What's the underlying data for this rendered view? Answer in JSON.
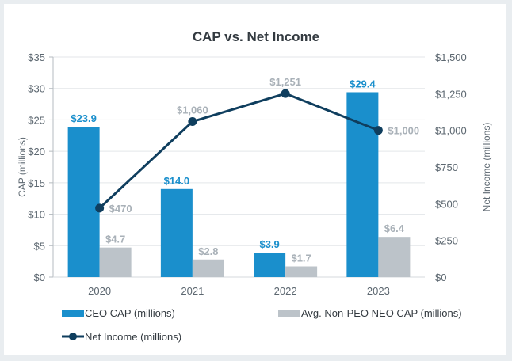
{
  "chart_data": {
    "type": "bar",
    "title": "CAP vs. Net Income",
    "categories": [
      "2020",
      "2021",
      "2022",
      "2023"
    ],
    "ylabel": "CAP (millions)",
    "y2label": "Net Income (millions)",
    "ylim": [
      0,
      35
    ],
    "y2lim": [
      0,
      1500
    ],
    "yticks": [
      "$0",
      "$5",
      "$10",
      "$15",
      "$20",
      "$25",
      "$30",
      "$35"
    ],
    "y2ticks": [
      "$0",
      "$250",
      "$500",
      "$750",
      "$1,000",
      "$1,250",
      "$1,500"
    ],
    "grid": true,
    "legend_position": "bottom",
    "series": [
      {
        "name": "CEO CAP (millions)",
        "type": "bar",
        "axis": "left",
        "color": "#1a8fcc",
        "values": [
          23.9,
          14.0,
          3.9,
          29.4
        ],
        "labels": [
          "$23.9",
          "$14.0",
          "$3.9",
          "$29.4"
        ]
      },
      {
        "name": "Avg. Non-PEO NEO CAP (millions)",
        "type": "bar",
        "axis": "left",
        "color": "#bcc3c9",
        "values": [
          4.7,
          2.8,
          1.7,
          6.4
        ],
        "labels": [
          "$4.7",
          "$2.8",
          "$1.7",
          "$6.4"
        ]
      },
      {
        "name": "Net Income (millions)",
        "type": "line",
        "axis": "right",
        "color": "#0f3e5e",
        "values": [
          470,
          1060,
          1251,
          1000
        ],
        "labels": [
          "$470",
          "$1,060",
          "$1,251",
          "$1,000"
        ]
      }
    ]
  }
}
